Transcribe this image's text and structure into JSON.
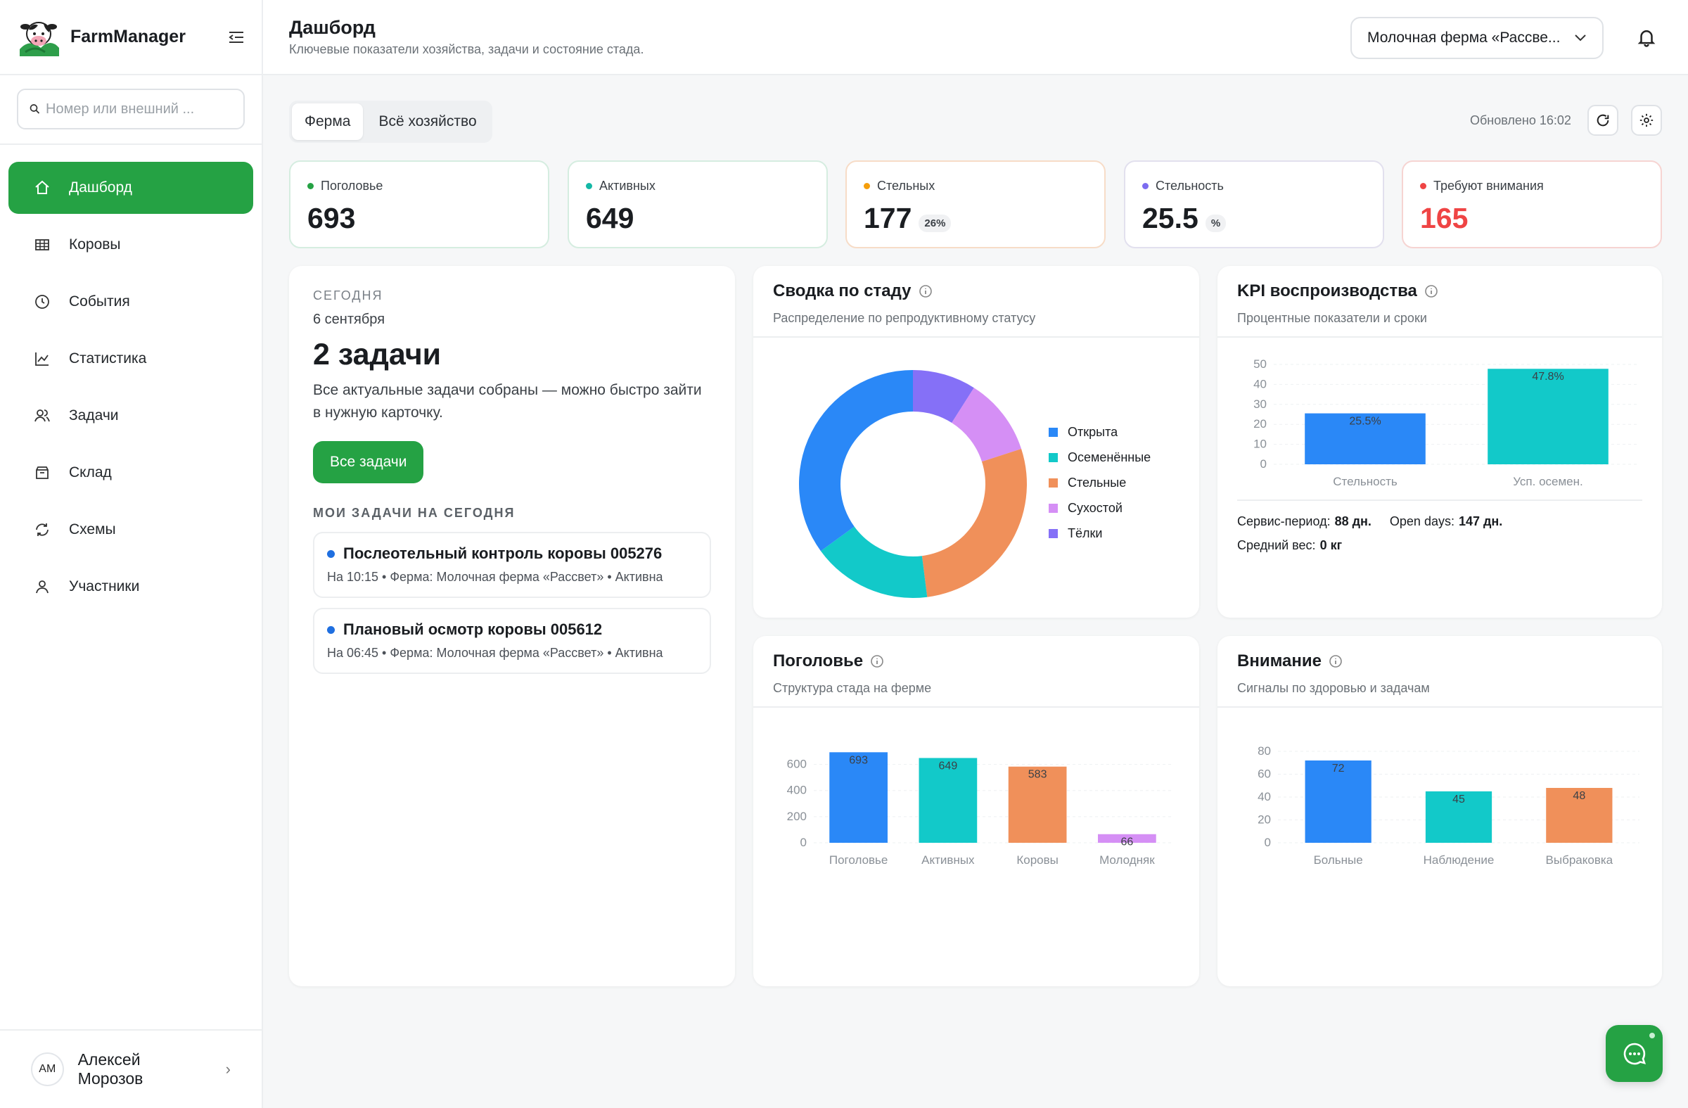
{
  "app": {
    "name": "FarmManager"
  },
  "search": {
    "placeholder": "Номер или внешний ..."
  },
  "nav": [
    {
      "label": "Дашборд",
      "icon": "home-icon",
      "active": true
    },
    {
      "label": "Коровы",
      "icon": "grid-icon"
    },
    {
      "label": "События",
      "icon": "clock-icon"
    },
    {
      "label": "Статистика",
      "icon": "chart-icon"
    },
    {
      "label": "Задачи",
      "icon": "users-icon"
    },
    {
      "label": "Склад",
      "icon": "box-icon"
    },
    {
      "label": "Схемы",
      "icon": "refresh-icon"
    },
    {
      "label": "Участники",
      "icon": "user-icon"
    }
  ],
  "user": {
    "initials": "АМ",
    "name": "Алексей Морозов"
  },
  "header": {
    "title": "Дашборд",
    "subtitle": "Ключевые показатели хозяйства, задачи и состояние стада.",
    "farm": "Молочная ферма «Рассве..."
  },
  "toolbar": {
    "tabs": [
      "Ферма",
      "Всё хозяйство"
    ],
    "active_tab": "Ферма",
    "updated": "Обновлено 16:02"
  },
  "kpis": [
    {
      "label": "Поголовье",
      "value": "693",
      "color": "#25a244"
    },
    {
      "label": "Активных",
      "value": "649",
      "color": "#14b8a6"
    },
    {
      "label": "Стельных",
      "value": "177",
      "badge": "26%",
      "color": "#f59e0b"
    },
    {
      "label": "Стельность",
      "value": "25.5",
      "badge": "%",
      "color": "#7c6cf0"
    },
    {
      "label": "Требуют внимания",
      "value": "165",
      "color": "#ef4444"
    }
  ],
  "tasks": {
    "eyebrow": "СЕГОДНЯ",
    "date": "6 сентября",
    "count": "2 задачи",
    "description": "Все актуальные задачи собраны — можно быстро зайти в нужную карточку.",
    "button": "Все задачи",
    "mine_title": "МОИ ЗАДАЧИ НА СЕГОДНЯ",
    "items": [
      {
        "title": "Послеотельный контроль коровы 005276",
        "meta": "На 10:15 • Ферма: Молочная ферма «Рассвет» • Активна"
      },
      {
        "title": "Плановый осмотр коровы 005612",
        "meta": "На 06:45 • Ферма: Молочная ферма «Рассвет» • Активна"
      }
    ]
  },
  "cards": {
    "herd": {
      "title": "Сводка по стаду",
      "subtitle": "Распределение по репродуктивному статусу"
    },
    "kpi": {
      "title": "KPI воспроизводства",
      "subtitle": "Процентные показатели и сроки"
    },
    "heads": {
      "title": "Поголовье",
      "subtitle": "Структура стада на ферме"
    },
    "attention": {
      "title": "Внимание",
      "subtitle": "Сигналы по здоровью и задачам"
    }
  },
  "kpi_stats": {
    "service_label": "Сервис-период:",
    "service_value": "88 дн.",
    "open_label": "Open days:",
    "open_value": "147 дн.",
    "weight_label": "Средний вес:",
    "weight_value": "0 кг"
  },
  "chart_data": [
    {
      "type": "pie",
      "categories": [
        "Открыта",
        "Осеменённые",
        "Стельные",
        "Сухостой",
        "Тёлки"
      ],
      "values": [
        35,
        17,
        28,
        11,
        9
      ],
      "colors": [
        "#2a88f7",
        "#12c9c9",
        "#f0905a",
        "#d58ff5",
        "#8570f7"
      ],
      "legend": "right"
    },
    {
      "type": "bar",
      "categories": [
        "Стельность",
        "Усп. осемен."
      ],
      "values": [
        25.5,
        47.8
      ],
      "labels": [
        "25.5%",
        "47.8%"
      ],
      "colors": [
        "#2a88f7",
        "#12c9c9"
      ],
      "ylim": [
        0,
        50
      ],
      "yticks": [
        0,
        10,
        20,
        30,
        40,
        50
      ]
    },
    {
      "type": "bar",
      "categories": [
        "Поголовье",
        "Активных",
        "Коровы",
        "Молодняк"
      ],
      "values": [
        693,
        649,
        583,
        66
      ],
      "labels": [
        "693",
        "649",
        "583",
        "66"
      ],
      "colors": [
        "#2a88f7",
        "#12c9c9",
        "#f0905a",
        "#d58ff5"
      ],
      "ylim": [
        0,
        700
      ],
      "yticks": [
        0,
        200,
        400,
        600
      ]
    },
    {
      "type": "bar",
      "categories": [
        "Больные",
        "Наблюдение",
        "Выбраковка"
      ],
      "values": [
        72,
        45,
        48
      ],
      "labels": [
        "72",
        "45",
        "48"
      ],
      "colors": [
        "#2a88f7",
        "#12c9c9",
        "#f0905a"
      ],
      "ylim": [
        0,
        80
      ],
      "yticks": [
        0,
        20,
        40,
        60,
        80
      ]
    }
  ]
}
